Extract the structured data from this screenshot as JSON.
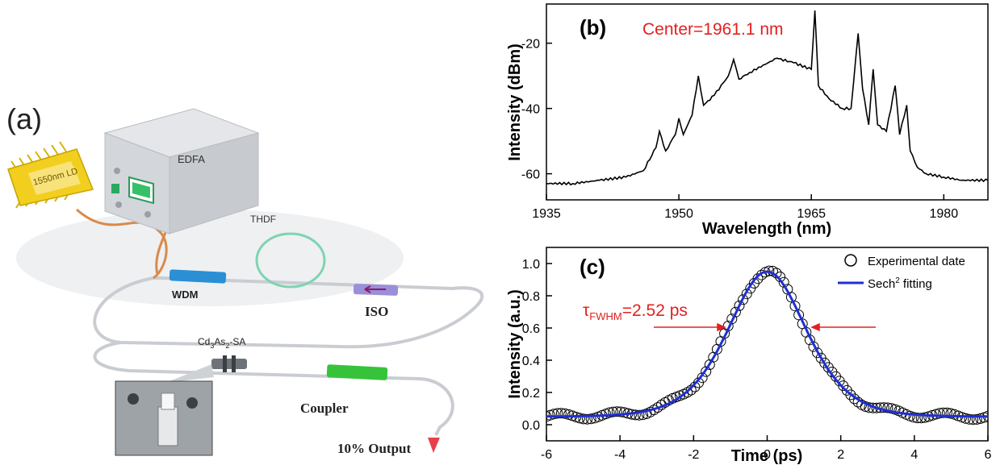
{
  "panel_a": {
    "label": "(a)",
    "ld_label": "1550nm LD",
    "edfa_label": "EDFA",
    "thdf_label": "THDF",
    "wdm_label": "WDM",
    "iso_label": "ISO",
    "sa_label_main": "Cd",
    "sa_label_sub1": "3",
    "sa_label_mid": "As",
    "sa_label_sub2": "2",
    "sa_label_tail": "-SA",
    "coupler_label": "Coupler",
    "output_label": "10% Output",
    "colors": {
      "wdm": "#2b8fd6",
      "iso": "#9a8fd8",
      "coupler": "#36c33a",
      "thdf": "#7fd3b0",
      "output": "#e8404a",
      "fiber": "#c9cdd2",
      "ld_fiber": "#d98a4a"
    }
  },
  "chart_data": [
    {
      "type": "line",
      "panel_label": "(b)",
      "annotation": "Center=1961.1 nm",
      "xlabel": "Wavelength (nm)",
      "ylabel": "Intensity (dBm)",
      "xlim": [
        1935,
        1985
      ],
      "ylim": [
        -68,
        -8
      ],
      "xticks": [
        1935,
        1950,
        1965,
        1980
      ],
      "yticks": [
        -60,
        -40,
        -20
      ],
      "series": [
        {
          "color": "#000000",
          "x": [
            1935,
            1938,
            1941,
            1944,
            1946,
            1947.4,
            1947.8,
            1948.5,
            1949.6,
            1950.0,
            1950.5,
            1951.5,
            1952.2,
            1952.8,
            1954,
            1955.6,
            1956.2,
            1956.8,
            1958,
            1961.1,
            1963,
            1965.0,
            1965.4,
            1965.8,
            1967,
            1968.5,
            1969.5,
            1970.3,
            1970.8,
            1971.5,
            1972.0,
            1972.5,
            1973.5,
            1974.5,
            1975,
            1975.8,
            1976.2,
            1977,
            1978,
            1980,
            1982,
            1985
          ],
          "y": [
            -63,
            -63,
            -62,
            -61,
            -59,
            -52,
            -47,
            -53,
            -48,
            -43,
            -48,
            -42,
            -30,
            -39,
            -36,
            -30,
            -25,
            -31,
            -29,
            -24.6,
            -26,
            -28,
            -10,
            -33,
            -37,
            -40,
            -40,
            -17,
            -34,
            -45,
            -28,
            -45,
            -47,
            -33,
            -48,
            -39,
            -53,
            -58,
            -60,
            -61,
            -62,
            -62
          ]
        }
      ]
    },
    {
      "type": "scatter",
      "panel_label": "(c)",
      "annotation_main": "τ",
      "annotation_sub": "FWHM",
      "annotation_tail": "=2.52 ps",
      "xlabel": "Time (ps)",
      "ylabel": "Intensity (a.u.)",
      "xlim": [
        -6,
        6
      ],
      "ylim": [
        -0.1,
        1.1
      ],
      "xticks": [
        -6,
        -4,
        -2,
        0,
        2,
        4,
        6
      ],
      "yticks": [
        0.0,
        0.2,
        0.4,
        0.6,
        0.8,
        1.0
      ],
      "legend_position": "top-right",
      "series": [
        {
          "name": "Experimental date",
          "marker": "open-circle",
          "color": "#000000",
          "function": "sech2",
          "peak": 0.95,
          "baseline": 0.05,
          "fwhm_ps": 2.52,
          "x_start": -6,
          "x_end": 6,
          "count": 120
        },
        {
          "name": "Sech² fitting",
          "legend_main": "Sech",
          "legend_sup": "2",
          "legend_tail": " fitting",
          "color": "#1f2fd6",
          "function": "sech2",
          "peak": 0.95,
          "baseline": 0.05,
          "fwhm_ps": 2.52
        }
      ]
    }
  ]
}
